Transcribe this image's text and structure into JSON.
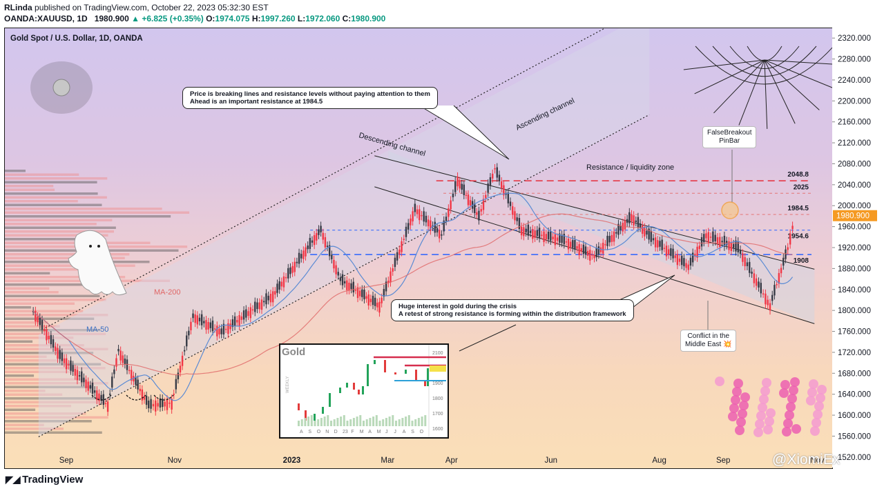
{
  "header": {
    "author": "RLinda",
    "published": "published on TradingView.com, October 22, 2023 05:32:30 EST",
    "symbol": "OANDA:XAUUSD, 1D",
    "last": "1980.900",
    "change": "▲ +6.825 (+0.35%)",
    "o_label": "O:",
    "o": "1974.075",
    "h_label": "H:",
    "h": "1997.260",
    "l_label": "L:",
    "l": "1972.060",
    "c_label": "C:",
    "c": "1980.900"
  },
  "chart_title": "Gold Spot / U.S. Dollar, 1D, OANDA",
  "chart_data": {
    "type": "candlestick",
    "title": "Gold Spot / U.S. Dollar, 1D, OANDA",
    "ylim": [
      1500,
      2340
    ],
    "y_ticks": [
      "2320.000",
      "2280.000",
      "2240.000",
      "2200.000",
      "2160.000",
      "2120.000",
      "2080.000",
      "2040.000",
      "2000.000",
      "1960.000",
      "1920.000",
      "1880.000",
      "1840.000",
      "1800.000",
      "1760.000",
      "1720.000",
      "1680.000",
      "1640.000",
      "1600.000",
      "1560.000",
      "1520.000"
    ],
    "x_ticks": [
      {
        "label": "Sep",
        "bold": false
      },
      {
        "label": "Nov",
        "bold": false
      },
      {
        "label": "2023",
        "bold": true
      },
      {
        "label": "Mar",
        "bold": false
      },
      {
        "label": "Apr",
        "bold": false
      },
      {
        "label": "Jun",
        "bold": false
      },
      {
        "label": "Aug",
        "bold": false
      },
      {
        "label": "Sep",
        "bold": false
      },
      {
        "label": "Nov",
        "bold": false
      }
    ],
    "price_path": [
      [
        "2022-08-17",
        1800
      ],
      [
        "2022-09-01",
        1715
      ],
      [
        "2022-09-28",
        1620
      ],
      [
        "2022-10-04",
        1725
      ],
      [
        "2022-10-21",
        1620
      ],
      [
        "2022-11-03",
        1625
      ],
      [
        "2022-11-15",
        1790
      ],
      [
        "2022-12-01",
        1760
      ],
      [
        "2022-12-30",
        1830
      ],
      [
        "2023-01-26",
        1955
      ],
      [
        "2023-02-06",
        1860
      ],
      [
        "2023-02-28",
        1810
      ],
      [
        "2023-03-20",
        1995
      ],
      [
        "2023-04-04",
        1945
      ],
      [
        "2023-04-13",
        2050
      ],
      [
        "2023-04-25",
        1980
      ],
      [
        "2023-05-04",
        2072
      ],
      [
        "2023-05-19",
        1955
      ],
      [
        "2023-06-12",
        1935
      ],
      [
        "2023-06-29",
        1905
      ],
      [
        "2023-07-20",
        1980
      ],
      [
        "2023-07-31",
        1940
      ],
      [
        "2023-08-21",
        1885
      ],
      [
        "2023-08-31",
        1945
      ],
      [
        "2023-09-18",
        1920
      ],
      [
        "2023-10-06",
        1810
      ],
      [
        "2023-10-16",
        1920
      ],
      [
        "2023-10-20",
        1980.9
      ]
    ],
    "levels": [
      {
        "label": "2048.8",
        "value": 2048.8,
        "color": "#e53946",
        "style": "dashed"
      },
      {
        "label": "2025",
        "value": 2025,
        "color": "#e57373",
        "style": "dashed"
      },
      {
        "label": "1984.5",
        "value": 1984.5,
        "color": "#e57373",
        "style": "dashed"
      },
      {
        "label": "1954.6",
        "value": 1954.6,
        "color": "#2962ff",
        "style": "dashed"
      },
      {
        "label": "1908",
        "value": 1908,
        "color": "#2962ff",
        "style": "dashed"
      }
    ],
    "last_price": "1980.900",
    "series": [
      {
        "name": "MA-200",
        "color": "#e06666"
      },
      {
        "name": "MA-50",
        "color": "#5b8bd4"
      }
    ]
  },
  "annotations": {
    "ascending_channel": "Ascending channel",
    "descending_channel": "Descending channel",
    "resistance_zone": "Resistance / liquidity zone",
    "callout_top_1": "Price is breaking lines and resistance levels without paying attention to them",
    "callout_top_2": "Ahead is an important resistance at 1984.5",
    "callout_mid_1": "Huge interest in gold during the crisis",
    "callout_mid_2": "A retest of strong resistance is forming within the distribution framework",
    "false_breakout_1": "FalseBreakout",
    "false_breakout_2": "PinBar",
    "conflict_1": "Conflict in the",
    "conflict_2": "Middle East 💥",
    "ma200": "MA-200",
    "ma50": "MA-50"
  },
  "inset": {
    "title": "Gold",
    "side_label": "WEEKLY",
    "y_ticks": [
      "2100",
      "2000",
      "1900",
      "1800",
      "1700",
      "1600"
    ],
    "x_ticks": [
      "A",
      "S",
      "O",
      "N",
      "D",
      "23",
      "F",
      "M",
      "A",
      "M",
      "J",
      "J",
      "A",
      "S",
      "O"
    ]
  },
  "footer": {
    "brand": "TradingView",
    "watermark": "@XiomiEx"
  },
  "colors": {
    "up": "#089981",
    "down": "#f23645",
    "accent_red": "#e53946",
    "accent_blue": "#2962ff"
  }
}
